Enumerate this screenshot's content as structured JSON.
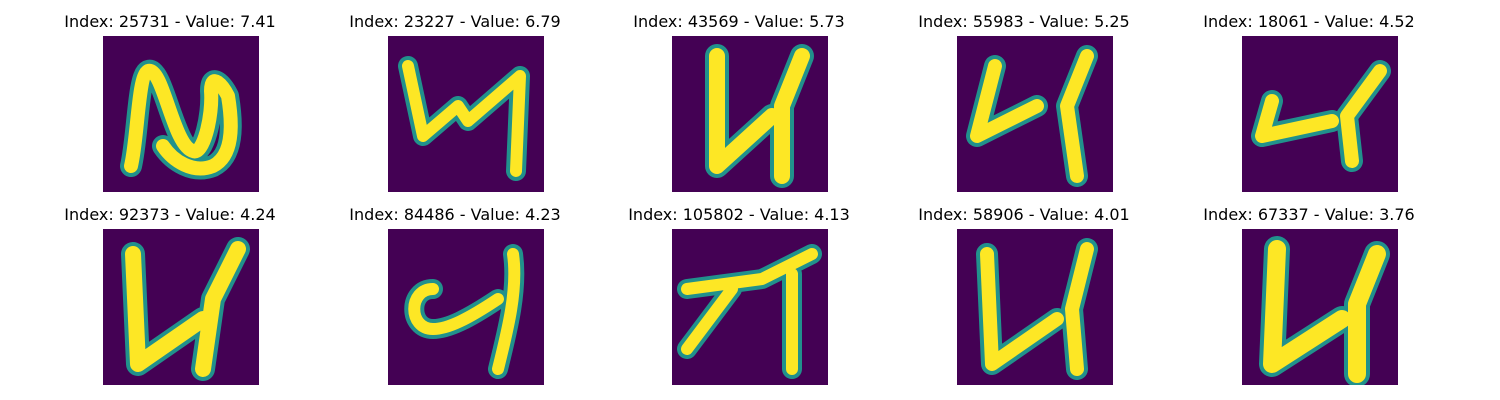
{
  "colors": {
    "background": "#440154",
    "stroke_edge": "#21918c",
    "stroke_mid": "#5ec962",
    "stroke_core": "#fde725"
  },
  "rows": [
    {
      "items": [
        {
          "title": "Index: 25731 - Value: 7.41",
          "glyph": "N-tall"
        },
        {
          "title": "Index: 23227 - Value: 6.79",
          "glyph": "4-like"
        },
        {
          "title": "Index: 43569 - Value: 5.73",
          "glyph": "U-like"
        },
        {
          "title": "Index: 55983 - Value: 5.25",
          "glyph": "4-like"
        },
        {
          "title": "Index: 18061 - Value: 4.52",
          "glyph": "u-small"
        }
      ]
    },
    {
      "items": [
        {
          "title": "Index: 92373 - Value: 4.24",
          "glyph": "N-like"
        },
        {
          "title": "Index: 84486 - Value: 4.23",
          "glyph": "4-loop"
        },
        {
          "title": "Index: 105802 - Value: 4.13",
          "glyph": "7-like"
        },
        {
          "title": "Index: 58906 - Value: 4.01",
          "glyph": "N-like"
        },
        {
          "title": "Index: 67337 - Value: 3.76",
          "glyph": "U-like"
        }
      ]
    }
  ]
}
